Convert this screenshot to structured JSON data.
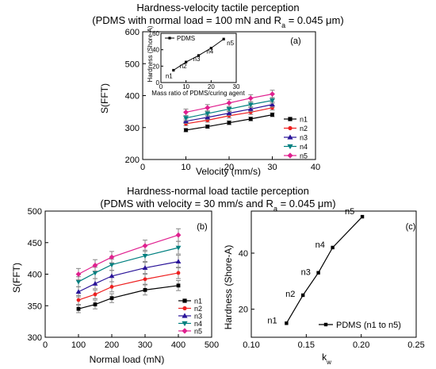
{
  "colors": {
    "n1": "#000000",
    "n2": "#ee2020",
    "n3": "#2a1499",
    "n4": "#008080",
    "n5": "#e0208f",
    "errorbar": "#888888",
    "axis": "#000000"
  },
  "panel_a": {
    "title_line1": "Hardness-velocity tactile perception",
    "title_line2": "(PDMS with normal load = 100 mN and R",
    "title_sub": "a",
    "title_tail": " = 0.045 μm)",
    "tag": "(a)",
    "ylabel": "S(FFT)",
    "xlabel": "Velocity (mm/s)",
    "xticks": [
      "0",
      "10",
      "20",
      "30",
      "40"
    ],
    "yticks": [
      "200",
      "300",
      "400",
      "500",
      "600"
    ],
    "legend": [
      "n1",
      "n2",
      "n3",
      "n4",
      "n5"
    ],
    "inset": {
      "ylabel": "Hardness (Shore-A)",
      "xlabel": "Mass ratio of PDMS/curing agent",
      "legend": "PDMS",
      "xticks": [
        "0",
        "10",
        "20",
        "30"
      ],
      "yticks": [
        "0",
        "20",
        "40",
        "60"
      ],
      "point_labels": [
        "n1",
        "n2",
        "n3",
        "n4",
        "n5"
      ]
    }
  },
  "panel_b": {
    "title_line1": "Hardness-normal load tactile perception",
    "title_line2": "(PDMS with velocity = 30 mm/s and R",
    "title_sub": "a",
    "title_tail": " = 0.045 μm)",
    "tag": "(b)",
    "ylabel": "S(FFT)",
    "xlabel": "Normal load (mN)",
    "xticks": [
      "0",
      "100",
      "200",
      "300",
      "400",
      "500"
    ],
    "yticks": [
      "300",
      "350",
      "400",
      "450",
      "500"
    ],
    "legend": [
      "n1",
      "n2",
      "n3",
      "n4",
      "n5"
    ]
  },
  "panel_c": {
    "tag": "(c)",
    "ylabel": "Hardness (Shore-A)",
    "xlabel": "k",
    "xlabel_sub": "w",
    "xticks": [
      "0.10",
      "0.15",
      "0.20",
      "0.25"
    ],
    "yticks": [
      "20",
      "40"
    ],
    "legend": "PDMS (n1 to n5)",
    "point_labels": [
      "n1",
      "n2",
      "n3",
      "n4",
      "n5"
    ]
  },
  "chart_data": [
    {
      "type": "line",
      "x": [
        10,
        15,
        20,
        25,
        30
      ],
      "xlim": [
        0,
        40
      ],
      "ylim": [
        200,
        600
      ],
      "series": [
        {
          "name": "n1",
          "values": [
            292,
            303,
            315,
            327,
            340
          ],
          "errors": [
            5,
            5,
            6,
            6,
            6
          ]
        },
        {
          "name": "n2",
          "values": [
            312,
            323,
            337,
            348,
            362
          ],
          "errors": [
            6,
            6,
            7,
            7,
            7
          ]
        },
        {
          "name": "n3",
          "values": [
            320,
            332,
            345,
            358,
            372
          ],
          "errors": [
            7,
            7,
            7,
            8,
            8
          ]
        },
        {
          "name": "n4",
          "values": [
            330,
            344,
            358,
            372,
            385
          ],
          "errors": [
            8,
            8,
            8,
            9,
            9
          ]
        },
        {
          "name": "n5",
          "values": [
            348,
            362,
            377,
            392,
            405
          ],
          "errors": [
            10,
            10,
            11,
            11,
            12
          ]
        }
      ]
    },
    {
      "type": "line",
      "x": [
        5,
        10,
        15,
        20,
        25
      ],
      "xlim": [
        0,
        30
      ],
      "ylim": [
        0,
        60
      ],
      "series": [
        {
          "name": "PDMS",
          "values": [
            15,
            25,
            33,
            42,
            53
          ]
        }
      ]
    },
    {
      "type": "line",
      "x": [
        100,
        150,
        200,
        300,
        400
      ],
      "xlim": [
        0,
        500
      ],
      "ylim": [
        300,
        500
      ],
      "series": [
        {
          "name": "n1",
          "values": [
            345,
            352,
            362,
            375,
            382
          ],
          "errors": [
            6,
            7,
            7,
            8,
            8
          ]
        },
        {
          "name": "n2",
          "values": [
            359,
            368,
            380,
            392,
            402
          ],
          "errors": [
            7,
            7,
            8,
            8,
            9
          ]
        },
        {
          "name": "n3",
          "values": [
            372,
            385,
            397,
            410,
            420
          ],
          "errors": [
            8,
            8,
            9,
            9,
            10
          ]
        },
        {
          "name": "n4",
          "values": [
            388,
            402,
            415,
            429,
            442
          ],
          "errors": [
            8,
            9,
            9,
            9,
            10
          ]
        },
        {
          "name": "n5",
          "values": [
            400,
            414,
            427,
            445,
            462
          ],
          "errors": [
            9,
            9,
            9,
            9,
            10
          ]
        }
      ]
    },
    {
      "type": "line",
      "x": [
        0.132,
        0.147,
        0.161,
        0.174,
        0.201
      ],
      "xlim": [
        0.1,
        0.25
      ],
      "ylim": [
        10,
        55
      ],
      "series": [
        {
          "name": "PDMS (n1 to n5)",
          "values": [
            15,
            25,
            33,
            42,
            53
          ]
        }
      ]
    }
  ]
}
